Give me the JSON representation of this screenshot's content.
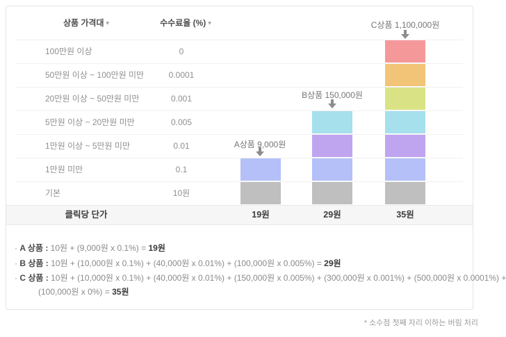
{
  "table": {
    "header": {
      "price_band": "상품 가격대",
      "fee_rate": "수수료율 (%)",
      "sort_icon": "▾"
    },
    "footer": {
      "label": "클릭당 단가",
      "values": [
        "19원",
        "29원",
        "35원"
      ]
    }
  },
  "chart": {
    "arrow_color": "#8D8D8D",
    "labels": {
      "a": "A상품  9,000원",
      "b": "B상품  150,000원",
      "c": "C상품  1,100,000원"
    }
  },
  "formulas": [
    {
      "bullet": "·",
      "label": "A 상품 :",
      "body": " 10원 + (9,000원 x 0.1%) = ",
      "result": "19원"
    },
    {
      "bullet": "·",
      "label": "B 상품 :",
      "body": " 10원 + (10,000원 x 0.1%) + (40,000원 x 0.01%) + (100,000원 x 0.005%) = ",
      "result": "29원"
    },
    {
      "bullet": "·",
      "label": "C 상품 :",
      "body": " 10원 + (10,000원 x 0.1%) + (40,000원 x 0.01%) + (150,000원 x 0.005%) + (300,000원 x 0.001%) + (500,000원 x 0.0001%) +",
      "body2": "(100,000원 x 0%)  = ",
      "result": "35원"
    }
  ],
  "note": "* 소수점 첫째 자리 이하는 버림 처리",
  "chart_data": {
    "type": "bar",
    "stacked": true,
    "orientation": "vertical",
    "categories": [
      "A상품",
      "B상품",
      "C상품"
    ],
    "category_prices": [
      "9,000원",
      "150,000원",
      "1,100,000원"
    ],
    "totals_per_click": [
      "19원",
      "29원",
      "35원"
    ],
    "legend_position": "table-rows-left",
    "grid": true,
    "tiers": [
      {
        "label": "100만원 이상",
        "rate": "0",
        "color": "#F5989A",
        "applies_to": [
          "C"
        ]
      },
      {
        "label": "50만원 이상 ~ 100만원 미만",
        "rate": "0.0001",
        "color": "#F2C478",
        "applies_to": [
          "C"
        ]
      },
      {
        "label": "20만원 이상 ~ 50만원 미만",
        "rate": "0.001",
        "color": "#D9E385",
        "applies_to": [
          "C"
        ]
      },
      {
        "label": "5만원 이상 ~ 20만원 미만",
        "rate": "0.005",
        "color": "#A5E0EC",
        "applies_to": [
          "B",
          "C"
        ]
      },
      {
        "label": "1만원 이상 ~ 5만원 미만",
        "rate": "0.01",
        "color": "#BFA5F0",
        "applies_to": [
          "B",
          "C"
        ]
      },
      {
        "label": "1만원 미만",
        "rate": "0.1",
        "color": "#B4C0F7",
        "applies_to": [
          "A",
          "B",
          "C"
        ]
      },
      {
        "label": "기본",
        "rate": "10원",
        "color": "#BFBFBF",
        "applies_to": [
          "A",
          "B",
          "C"
        ]
      }
    ],
    "series": [
      {
        "name": "segments-A",
        "values": [
          0,
          0,
          0,
          0,
          0,
          1,
          1
        ]
      },
      {
        "name": "segments-B",
        "values": [
          0,
          0,
          0,
          1,
          1,
          1,
          1
        ]
      },
      {
        "name": "segments-C",
        "values": [
          1,
          1,
          1,
          1,
          1,
          1,
          1
        ]
      }
    ]
  }
}
